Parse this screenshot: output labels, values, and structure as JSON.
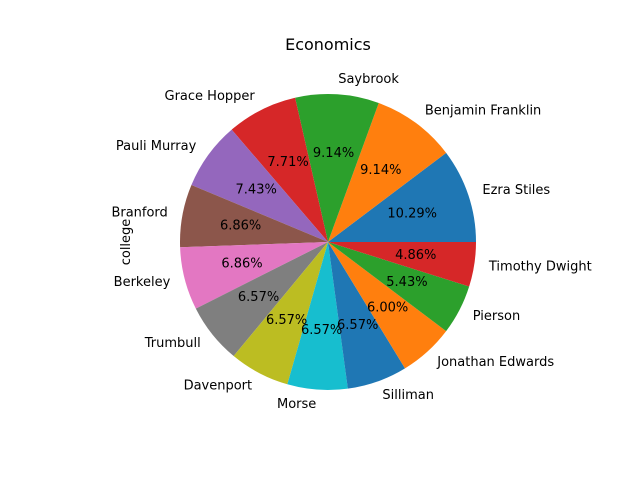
{
  "chart_data": {
    "type": "pie",
    "title": "Economics",
    "ylabel": "college",
    "start_angle_deg": 0,
    "direction": "counterclockwise",
    "slices": [
      {
        "label": "Ezra Stiles",
        "value": 10.29,
        "pct_text": "10.29%",
        "color": "#1f77b4"
      },
      {
        "label": "Benjamin Franklin",
        "value": 9.14,
        "pct_text": "9.14%",
        "color": "#ff7f0e"
      },
      {
        "label": "Saybrook",
        "value": 9.14,
        "pct_text": "9.14%",
        "color": "#2ca02c"
      },
      {
        "label": "Grace Hopper",
        "value": 7.71,
        "pct_text": "7.71%",
        "color": "#d62728"
      },
      {
        "label": "Pauli Murray",
        "value": 7.43,
        "pct_text": "7.43%",
        "color": "#9467bd"
      },
      {
        "label": "Branford",
        "value": 6.86,
        "pct_text": "6.86%",
        "color": "#8c564b"
      },
      {
        "label": "Berkeley",
        "value": 6.86,
        "pct_text": "6.86%",
        "color": "#e377c2"
      },
      {
        "label": "Trumbull",
        "value": 6.57,
        "pct_text": "6.57%",
        "color": "#7f7f7f"
      },
      {
        "label": "Davenport",
        "value": 6.57,
        "pct_text": "6.57%",
        "color": "#bcbd22"
      },
      {
        "label": "Morse",
        "value": 6.57,
        "pct_text": "6.57%",
        "color": "#17becf"
      },
      {
        "label": "Silliman",
        "value": 6.57,
        "pct_text": "6.57%",
        "color": "#1f77b4"
      },
      {
        "label": "Jonathan Edwards",
        "value": 6.0,
        "pct_text": "6.00%",
        "color": "#ff7f0e"
      },
      {
        "label": "Pierson",
        "value": 5.43,
        "pct_text": "5.43%",
        "color": "#2ca02c"
      },
      {
        "label": "Timothy Dwight",
        "value": 4.86,
        "pct_text": "4.86%",
        "color": "#d62728"
      }
    ]
  }
}
